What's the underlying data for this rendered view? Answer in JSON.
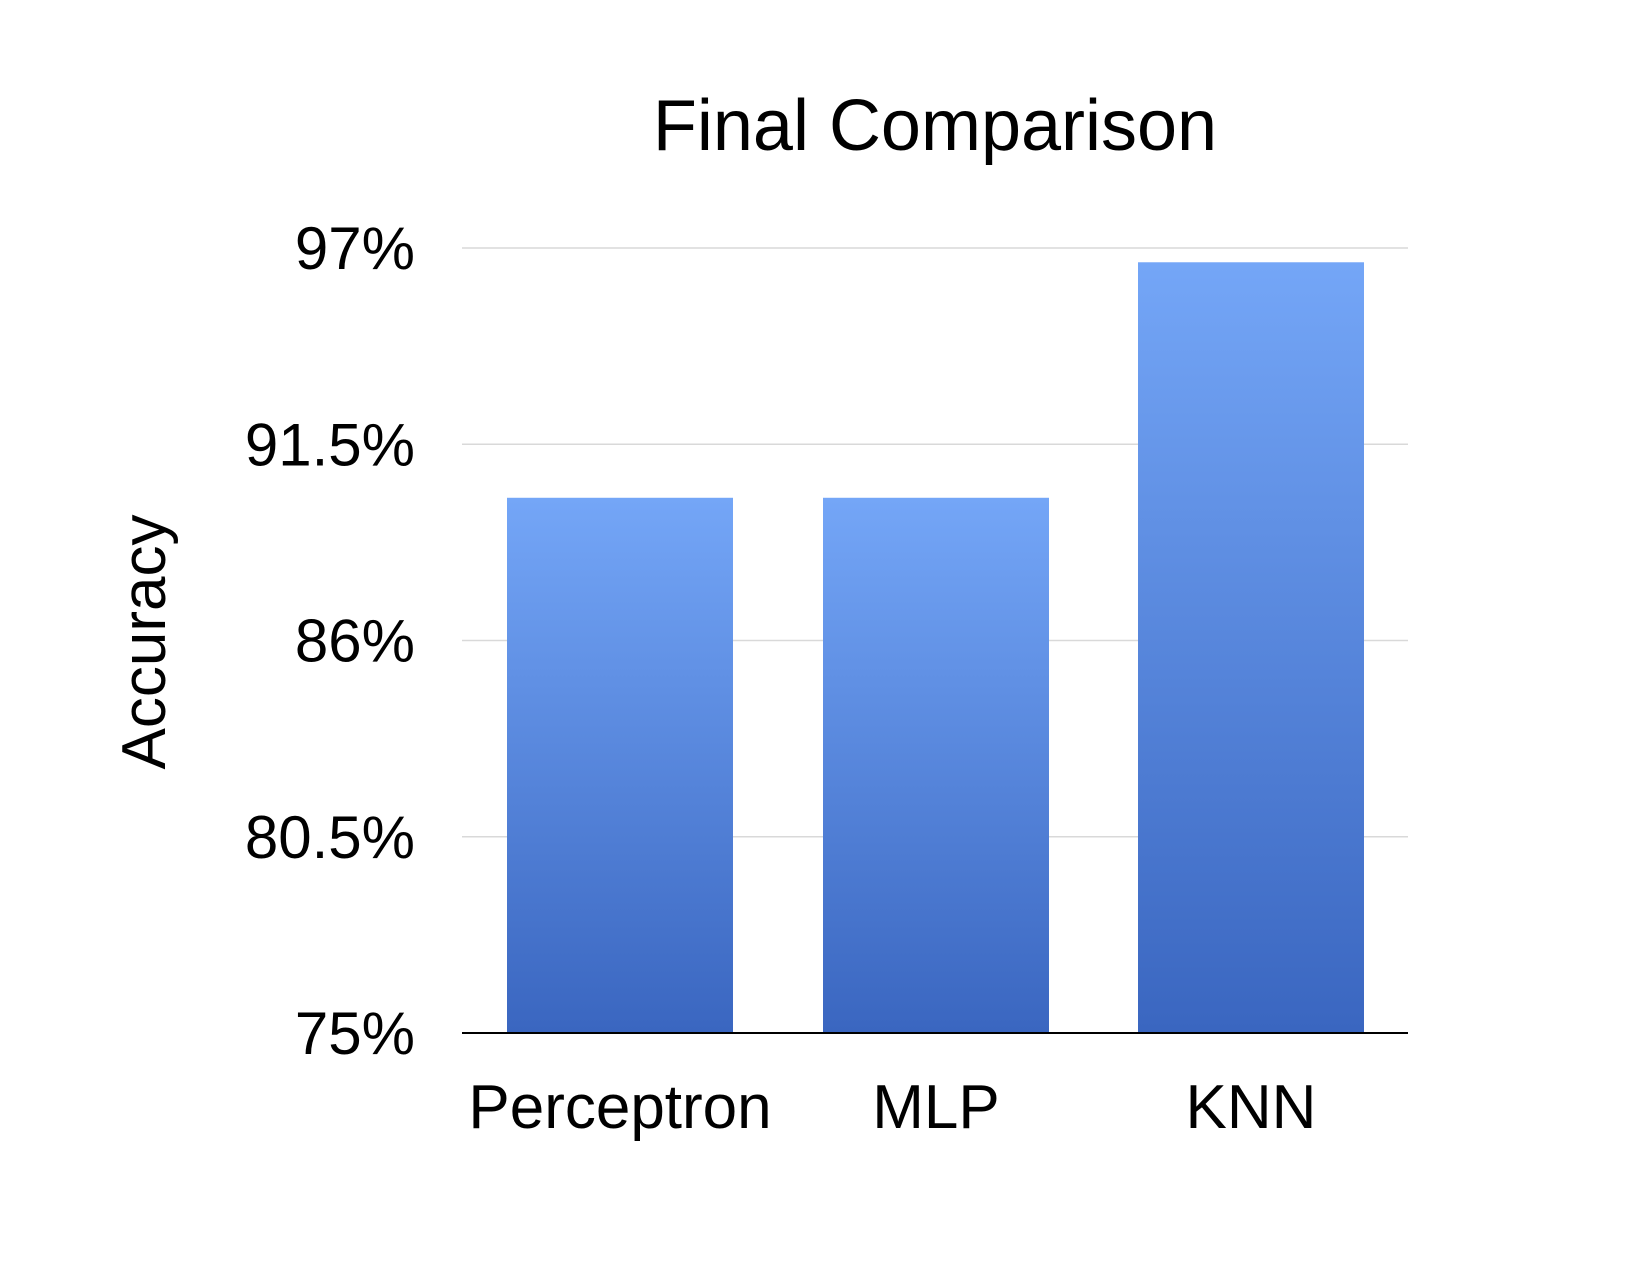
{
  "chart_data": {
    "type": "bar",
    "title": "Final Comparison",
    "xlabel": "",
    "ylabel": "Accuracy",
    "categories": [
      "Perceptron",
      "MLP",
      "KNN"
    ],
    "values": [
      90.0,
      90.0,
      96.6
    ],
    "ylim": [
      75,
      97
    ],
    "yticks": [
      75,
      80.5,
      86,
      91.5,
      97
    ],
    "ytick_labels": [
      "75%",
      "80.5%",
      "86%",
      "91.5%",
      "97%"
    ],
    "grid": true,
    "legend": "none",
    "bar_color_top": "#74a6f7",
    "bar_color_bottom": "#3a66c0"
  }
}
